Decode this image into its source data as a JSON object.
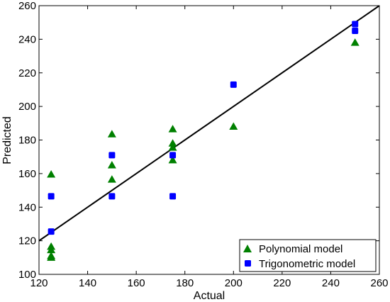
{
  "chart_data": {
    "type": "scatter",
    "title": "",
    "xlabel": "Actual",
    "ylabel": "Predicted",
    "xlim": [
      120,
      260
    ],
    "ylim": [
      100,
      260
    ],
    "xticks": [
      120,
      140,
      160,
      180,
      200,
      220,
      240,
      260
    ],
    "yticks": [
      100,
      120,
      140,
      160,
      180,
      200,
      220,
      240,
      260
    ],
    "grid": false,
    "legend_position": "bottom-right",
    "series": [
      {
        "name": "Polynomial model",
        "marker": "triangle",
        "color": "#008000",
        "points": [
          [
            125,
            159.5
          ],
          [
            125,
            116.5
          ],
          [
            125,
            114.5
          ],
          [
            125,
            111
          ],
          [
            125,
            110
          ],
          [
            150,
            183.5
          ],
          [
            150,
            165
          ],
          [
            150,
            156.5
          ],
          [
            175,
            186.5
          ],
          [
            175,
            178
          ],
          [
            175,
            175.5
          ],
          [
            175,
            168
          ],
          [
            200,
            188
          ],
          [
            250,
            238
          ]
        ]
      },
      {
        "name": "Trigonometric model",
        "marker": "square",
        "color": "#0000ff",
        "points": [
          [
            125,
            146.5
          ],
          [
            125,
            125.5
          ],
          [
            150,
            171
          ],
          [
            150,
            146.5
          ],
          [
            175,
            171
          ],
          [
            175,
            146.5
          ],
          [
            200,
            213
          ],
          [
            250,
            249
          ],
          [
            250,
            245
          ]
        ]
      }
    ],
    "reference_line": {
      "name": "",
      "color": "#000000",
      "points": [
        [
          120,
          120
        ],
        [
          260,
          260
        ]
      ]
    }
  }
}
